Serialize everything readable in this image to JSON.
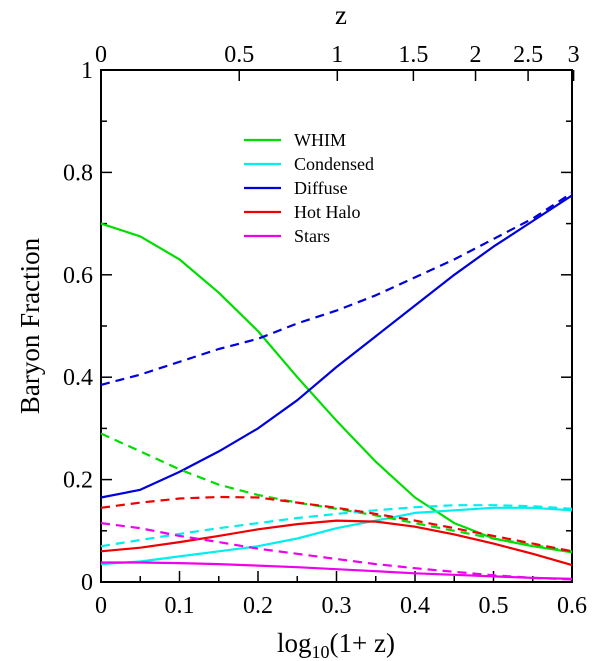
{
  "chart_data": {
    "type": "line",
    "xlabel_main": "log",
    "xlabel_sub": "10",
    "xlabel_rest": "(1+ z)",
    "ylabel": "Baryon Fraction",
    "top_xlabel": "z",
    "xlim": [
      0,
      0.6
    ],
    "ylim": [
      0,
      1
    ],
    "xticks": [
      0,
      0.1,
      0.2,
      0.3,
      0.4,
      0.5,
      0.6
    ],
    "xtick_labels": [
      "0",
      "0.1",
      "0.2",
      "0.3",
      "0.4",
      "0.5",
      "0.6"
    ],
    "yticks": [
      0,
      0.2,
      0.4,
      0.6,
      0.8,
      1
    ],
    "ytick_labels": [
      "0",
      "0.2",
      "0.4",
      "0.6",
      "0.8",
      "1"
    ],
    "top_ticks": [
      {
        "z": 0,
        "label": "0"
      },
      {
        "z": 0.5,
        "label": "0.5"
      },
      {
        "z": 1,
        "label": "1"
      },
      {
        "z": 1.5,
        "label": "1.5"
      },
      {
        "z": 2,
        "label": "2"
      },
      {
        "z": 2.5,
        "label": "2.5"
      },
      {
        "z": 3,
        "label": "3"
      }
    ],
    "legend_position": "upper-center",
    "series": [
      {
        "name": "WHIM",
        "color": "#00dd00",
        "in_legend": true,
        "dashed": false,
        "points": [
          [
            0,
            0.7
          ],
          [
            0.05,
            0.675
          ],
          [
            0.1,
            0.63
          ],
          [
            0.15,
            0.565
          ],
          [
            0.2,
            0.49
          ],
          [
            0.25,
            0.4
          ],
          [
            0.3,
            0.315
          ],
          [
            0.35,
            0.235
          ],
          [
            0.4,
            0.165
          ],
          [
            0.45,
            0.115
          ],
          [
            0.5,
            0.085
          ],
          [
            0.55,
            0.07
          ],
          [
            0.6,
            0.058
          ]
        ]
      },
      {
        "name": "Condensed",
        "color": "#00eeee",
        "in_legend": true,
        "dashed": false,
        "points": [
          [
            0,
            0.035
          ],
          [
            0.05,
            0.04
          ],
          [
            0.1,
            0.05
          ],
          [
            0.15,
            0.06
          ],
          [
            0.2,
            0.07
          ],
          [
            0.25,
            0.085
          ],
          [
            0.3,
            0.105
          ],
          [
            0.35,
            0.12
          ],
          [
            0.4,
            0.135
          ],
          [
            0.45,
            0.14
          ],
          [
            0.5,
            0.145
          ],
          [
            0.55,
            0.145
          ],
          [
            0.6,
            0.14
          ]
        ]
      },
      {
        "name": "Diffuse",
        "color": "#0000dd",
        "in_legend": true,
        "dashed": false,
        "points": [
          [
            0,
            0.165
          ],
          [
            0.05,
            0.18
          ],
          [
            0.1,
            0.215
          ],
          [
            0.15,
            0.255
          ],
          [
            0.2,
            0.3
          ],
          [
            0.25,
            0.355
          ],
          [
            0.3,
            0.42
          ],
          [
            0.35,
            0.48
          ],
          [
            0.4,
            0.54
          ],
          [
            0.45,
            0.6
          ],
          [
            0.5,
            0.655
          ],
          [
            0.55,
            0.705
          ],
          [
            0.6,
            0.755
          ]
        ]
      },
      {
        "name": "Hot Halo",
        "color": "#ee0000",
        "in_legend": true,
        "dashed": false,
        "points": [
          [
            0,
            0.06
          ],
          [
            0.05,
            0.067
          ],
          [
            0.1,
            0.078
          ],
          [
            0.15,
            0.09
          ],
          [
            0.2,
            0.103
          ],
          [
            0.25,
            0.113
          ],
          [
            0.3,
            0.12
          ],
          [
            0.35,
            0.118
          ],
          [
            0.4,
            0.108
          ],
          [
            0.45,
            0.093
          ],
          [
            0.5,
            0.075
          ],
          [
            0.55,
            0.055
          ],
          [
            0.6,
            0.033
          ]
        ]
      },
      {
        "name": "Stars",
        "color": "#ee00ee",
        "in_legend": true,
        "dashed": false,
        "points": [
          [
            0,
            0.038
          ],
          [
            0.05,
            0.038
          ],
          [
            0.1,
            0.037
          ],
          [
            0.15,
            0.035
          ],
          [
            0.2,
            0.032
          ],
          [
            0.25,
            0.029
          ],
          [
            0.3,
            0.025
          ],
          [
            0.35,
            0.021
          ],
          [
            0.4,
            0.017
          ],
          [
            0.45,
            0.014
          ],
          [
            0.5,
            0.011
          ],
          [
            0.55,
            0.008
          ],
          [
            0.6,
            0.006
          ]
        ]
      },
      {
        "color": "#00dd00",
        "in_legend": false,
        "dashed": true,
        "points": [
          [
            0,
            0.29
          ],
          [
            0.05,
            0.255
          ],
          [
            0.1,
            0.22
          ],
          [
            0.15,
            0.19
          ],
          [
            0.2,
            0.17
          ],
          [
            0.25,
            0.155
          ],
          [
            0.3,
            0.143
          ],
          [
            0.35,
            0.13
          ],
          [
            0.4,
            0.115
          ],
          [
            0.45,
            0.1
          ],
          [
            0.5,
            0.085
          ],
          [
            0.55,
            0.072
          ],
          [
            0.6,
            0.06
          ]
        ]
      },
      {
        "color": "#00eeee",
        "in_legend": false,
        "dashed": true,
        "points": [
          [
            0,
            0.07
          ],
          [
            0.05,
            0.082
          ],
          [
            0.1,
            0.094
          ],
          [
            0.15,
            0.105
          ],
          [
            0.2,
            0.115
          ],
          [
            0.25,
            0.125
          ],
          [
            0.3,
            0.133
          ],
          [
            0.35,
            0.14
          ],
          [
            0.4,
            0.146
          ],
          [
            0.45,
            0.15
          ],
          [
            0.5,
            0.15
          ],
          [
            0.55,
            0.148
          ],
          [
            0.6,
            0.143
          ]
        ]
      },
      {
        "color": "#0000dd",
        "in_legend": false,
        "dashed": true,
        "points": [
          [
            0,
            0.385
          ],
          [
            0.05,
            0.405
          ],
          [
            0.1,
            0.43
          ],
          [
            0.15,
            0.455
          ],
          [
            0.2,
            0.475
          ],
          [
            0.25,
            0.505
          ],
          [
            0.3,
            0.53
          ],
          [
            0.35,
            0.56
          ],
          [
            0.4,
            0.595
          ],
          [
            0.45,
            0.63
          ],
          [
            0.5,
            0.67
          ],
          [
            0.55,
            0.71
          ],
          [
            0.6,
            0.76
          ]
        ]
      },
      {
        "color": "#ee0000",
        "in_legend": false,
        "dashed": true,
        "points": [
          [
            0,
            0.145
          ],
          [
            0.05,
            0.155
          ],
          [
            0.1,
            0.163
          ],
          [
            0.15,
            0.166
          ],
          [
            0.2,
            0.165
          ],
          [
            0.25,
            0.155
          ],
          [
            0.3,
            0.145
          ],
          [
            0.35,
            0.133
          ],
          [
            0.4,
            0.12
          ],
          [
            0.45,
            0.105
          ],
          [
            0.5,
            0.09
          ],
          [
            0.55,
            0.075
          ],
          [
            0.6,
            0.06
          ]
        ]
      },
      {
        "color": "#ee00ee",
        "in_legend": false,
        "dashed": true,
        "points": [
          [
            0,
            0.115
          ],
          [
            0.05,
            0.105
          ],
          [
            0.1,
            0.09
          ],
          [
            0.15,
            0.078
          ],
          [
            0.2,
            0.065
          ],
          [
            0.25,
            0.055
          ],
          [
            0.3,
            0.045
          ],
          [
            0.35,
            0.035
          ],
          [
            0.4,
            0.027
          ],
          [
            0.45,
            0.02
          ],
          [
            0.5,
            0.013
          ],
          [
            0.55,
            0.008
          ],
          [
            0.6,
            0.005
          ]
        ]
      }
    ]
  }
}
